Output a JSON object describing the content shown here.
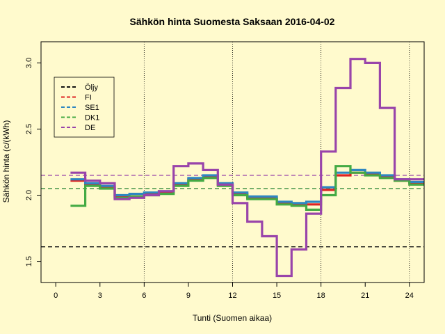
{
  "chart_data": {
    "type": "line",
    "title": "Sähkön hinta Suomesta Saksaan 2016-04-02",
    "xlabel": "Tunti (Suomen aikaa)",
    "ylabel": "Sähkön hinta (c/(kWh)",
    "xlim": [
      -1,
      25
    ],
    "ylim": [
      1.34,
      3.16
    ],
    "xticks": [
      0,
      3,
      6,
      9,
      12,
      15,
      18,
      21,
      24
    ],
    "yticks": [
      1.5,
      2.0,
      2.5,
      3.0
    ],
    "vlines": [
      6,
      12,
      18,
      24
    ],
    "legend_position": "top-left",
    "series": [
      {
        "name": "FI",
        "color": "#dd2222",
        "values": [
          2.11,
          2.08,
          2.06,
          1.99,
          1.99,
          2.01,
          2.02,
          2.08,
          2.12,
          2.14,
          2.08,
          2.01,
          1.98,
          1.98,
          1.94,
          1.93,
          1.93,
          2.04,
          2.15,
          2.17,
          2.16,
          2.14,
          2.11,
          2.09
        ]
      },
      {
        "name": "SE1",
        "color": "#2e86c1",
        "values": [
          2.12,
          2.09,
          2.07,
          2.0,
          2.01,
          2.02,
          2.03,
          2.09,
          2.13,
          2.15,
          2.09,
          2.02,
          1.99,
          1.99,
          1.95,
          1.94,
          1.95,
          2.06,
          2.17,
          2.19,
          2.17,
          2.15,
          2.12,
          2.1
        ]
      },
      {
        "name": "DK1",
        "color": "#44aa44",
        "values": [
          1.92,
          2.07,
          2.05,
          1.98,
          1.99,
          2.0,
          2.01,
          2.07,
          2.11,
          2.13,
          2.07,
          2.0,
          1.97,
          1.97,
          1.93,
          1.92,
          1.89,
          2.0,
          2.22,
          2.17,
          2.15,
          2.13,
          2.11,
          2.08
        ]
      },
      {
        "name": "DE",
        "color": "#9944aa",
        "values": [
          2.17,
          2.11,
          2.09,
          1.97,
          1.98,
          2.0,
          2.03,
          2.22,
          2.24,
          2.19,
          2.08,
          1.94,
          1.8,
          1.69,
          1.39,
          1.59,
          1.86,
          2.33,
          2.81,
          3.03,
          3.0,
          2.66,
          2.12,
          2.12
        ]
      }
    ],
    "reference_lines": [
      {
        "name": "Öljy",
        "color": "#111111",
        "value": 1.61
      },
      {
        "name": "FI",
        "color": "#dd2222",
        "value": 2.05
      },
      {
        "name": "SE1",
        "color": "#2e86c1",
        "value": 2.05
      },
      {
        "name": "DK1",
        "color": "#44aa44",
        "value": 2.05
      },
      {
        "name": "DE",
        "color": "#9944aa",
        "value": 2.15
      }
    ]
  }
}
